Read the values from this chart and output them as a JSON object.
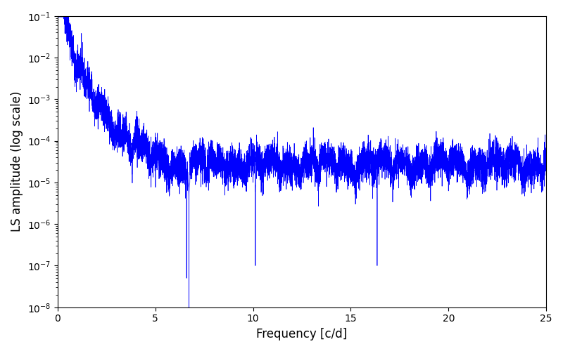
{
  "xlabel": "Frequency [c/d]",
  "ylabel": "LS amplitude (log scale)",
  "line_color": "#0000ff",
  "xlim": [
    0,
    25
  ],
  "ylim_log": [
    -8,
    -1
  ],
  "background_color": "#ffffff",
  "figsize": [
    8.0,
    5.0
  ],
  "dpi": 100,
  "line_width": 0.5
}
